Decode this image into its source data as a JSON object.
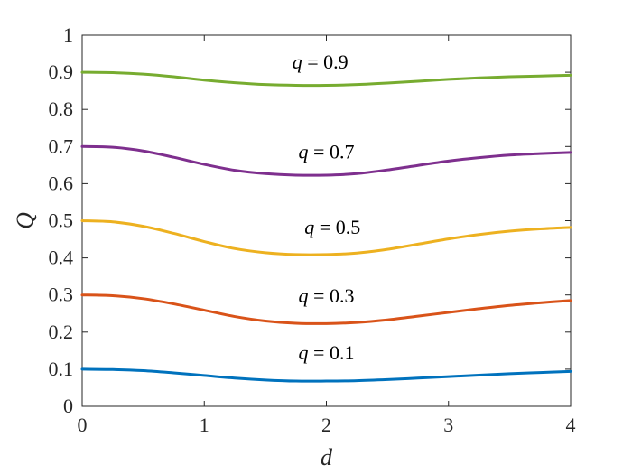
{
  "chart_data": {
    "type": "line",
    "xlabel": "d",
    "ylabel": "Q",
    "xlim": [
      0,
      4
    ],
    "ylim": [
      0,
      1
    ],
    "xticks": [
      "0",
      "1",
      "2",
      "3",
      "4"
    ],
    "yticks": [
      "0",
      "0.1",
      "0.2",
      "0.3",
      "0.4",
      "0.5",
      "0.6",
      "0.7",
      "0.8",
      "0.9",
      "1"
    ],
    "grid": false,
    "x": [
      0,
      0.25,
      0.5,
      0.75,
      1,
      1.25,
      1.5,
      1.75,
      2,
      2.25,
      2.5,
      2.75,
      3,
      3.25,
      3.5,
      3.75,
      4
    ],
    "series": [
      {
        "color": "#0072BD",
        "values": [
          0.1,
          0.099,
          0.096,
          0.09,
          0.083,
          0.076,
          0.071,
          0.068,
          0.068,
          0.069,
          0.072,
          0.076,
          0.08,
          0.084,
          0.088,
          0.091,
          0.094
        ]
      },
      {
        "color": "#D95319",
        "values": [
          0.3,
          0.298,
          0.29,
          0.276,
          0.259,
          0.242,
          0.23,
          0.224,
          0.223,
          0.226,
          0.233,
          0.243,
          0.253,
          0.263,
          0.272,
          0.279,
          0.285
        ]
      },
      {
        "color": "#EDB120",
        "values": [
          0.5,
          0.497,
          0.485,
          0.466,
          0.444,
          0.425,
          0.414,
          0.409,
          0.409,
          0.413,
          0.423,
          0.437,
          0.451,
          0.463,
          0.472,
          0.478,
          0.482
        ]
      },
      {
        "color": "#7E2F8E",
        "values": [
          0.7,
          0.698,
          0.688,
          0.671,
          0.652,
          0.636,
          0.627,
          0.623,
          0.623,
          0.627,
          0.637,
          0.649,
          0.661,
          0.67,
          0.677,
          0.681,
          0.684
        ]
      },
      {
        "color": "#77AC30",
        "values": [
          0.9,
          0.899,
          0.895,
          0.888,
          0.879,
          0.872,
          0.867,
          0.865,
          0.865,
          0.867,
          0.871,
          0.876,
          0.881,
          0.885,
          0.888,
          0.89,
          0.892
        ]
      }
    ],
    "annotations": [
      {
        "q": "q",
        "text": " = 0.1",
        "x": 2.0,
        "y": 0.127
      },
      {
        "q": "q",
        "text": " = 0.3",
        "x": 2.0,
        "y": 0.28
      },
      {
        "q": "q",
        "text": " = 0.5",
        "x": 2.05,
        "y": 0.465
      },
      {
        "q": "q",
        "text": " = 0.7",
        "x": 2.0,
        "y": 0.668
      },
      {
        "q": "q",
        "text": " = 0.9",
        "x": 1.95,
        "y": 0.91
      }
    ]
  }
}
